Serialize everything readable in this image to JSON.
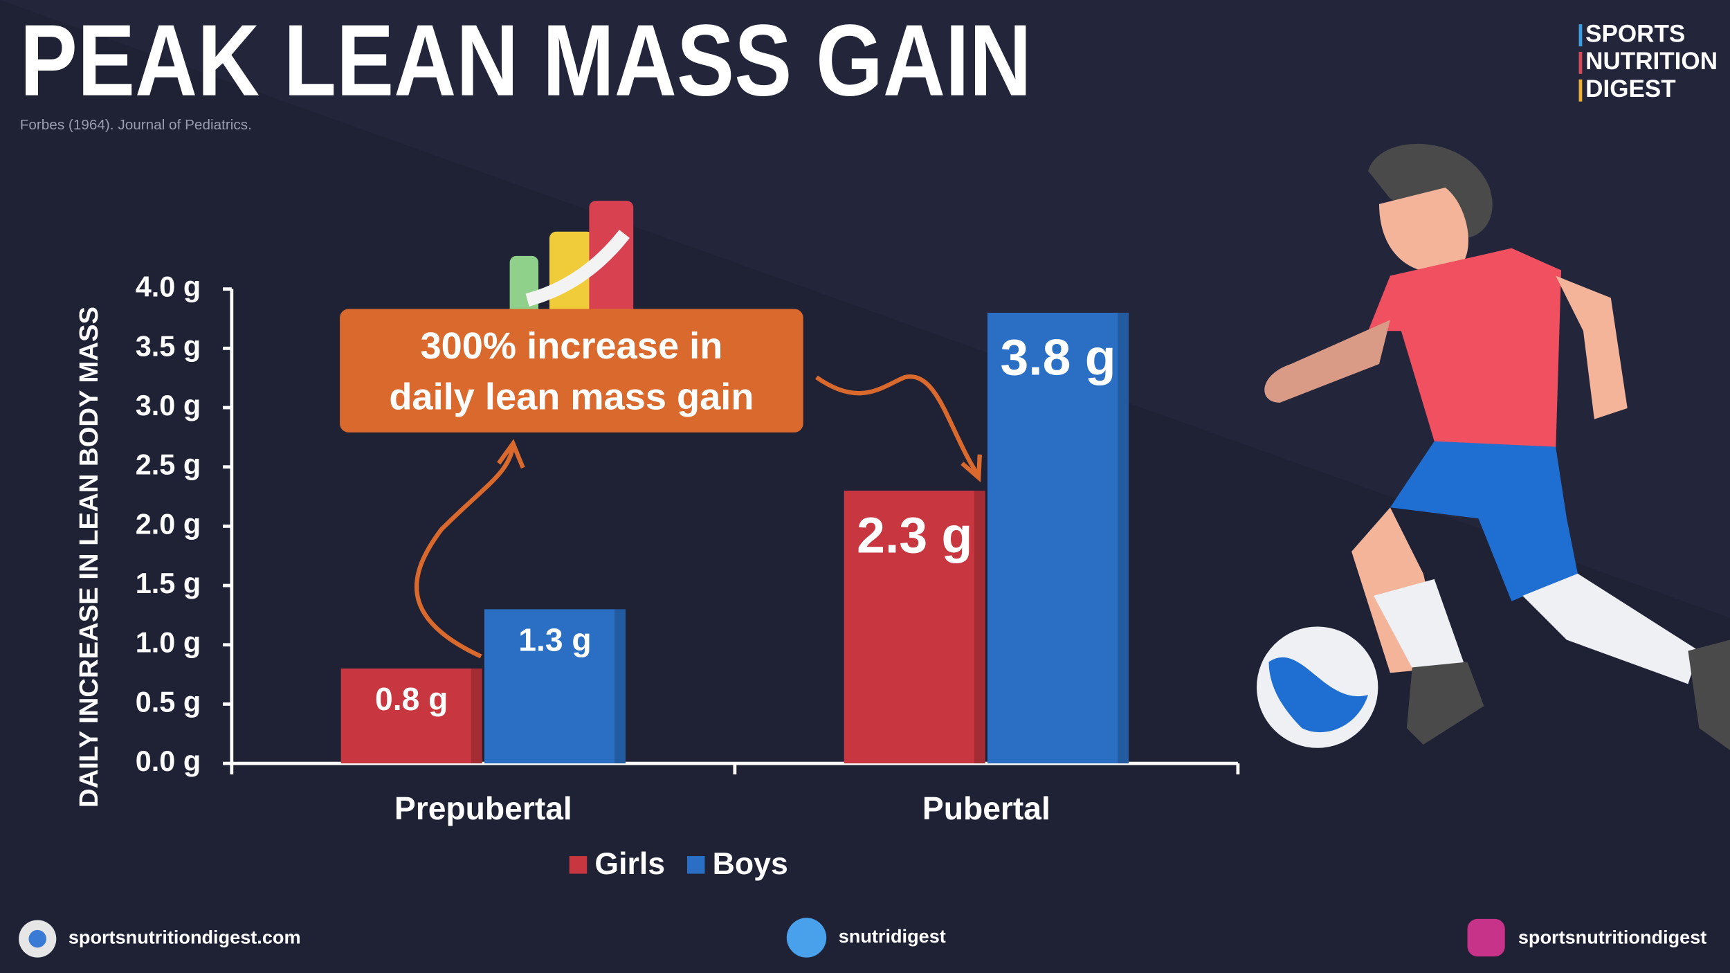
{
  "chart_data": {
    "type": "bar",
    "title": "PEAK LEAN MASS GAIN",
    "subtitle": "Forbes (1964). Journal of Pediatrics.",
    "ylabel": "DAILY INCREASE IN LEAN BODY MASS",
    "categories": [
      "Prepubertal",
      "Pubertal"
    ],
    "series": [
      {
        "name": "Girls",
        "color": "#c8373f",
        "values": [
          0.8,
          2.3
        ],
        "value_labels": [
          "0.8 g",
          "2.3 g"
        ]
      },
      {
        "name": "Boys",
        "color": "#2a6fc4",
        "values": [
          1.3,
          3.8
        ],
        "value_labels": [
          "1.3 g",
          "3.8 g"
        ]
      }
    ],
    "ylim": [
      0,
      4
    ],
    "yticks": [
      {
        "value": 0,
        "label": "0.0 g"
      },
      {
        "value": 0.5,
        "label": "0.5 g"
      },
      {
        "value": 1,
        "label": "1.0 g"
      },
      {
        "value": 1.5,
        "label": "1.5 g"
      },
      {
        "value": 2,
        "label": "2.0 g"
      },
      {
        "value": 2.5,
        "label": "2.5 g"
      },
      {
        "value": 3,
        "label": "3.0 g"
      },
      {
        "value": 3.5,
        "label": "3.5 g"
      },
      {
        "value": 4,
        "label": "4.0 g"
      }
    ],
    "annotation": [
      "300% increase in",
      "daily lean mass gain"
    ],
    "legend": "bottom"
  },
  "brand": [
    "SPORTS",
    "NUTRITION",
    "DIGEST"
  ],
  "footer": {
    "website": "sportsnutritiondigest.com",
    "twitter": "snutridigest",
    "instagram": "sportsnutritiondigest"
  }
}
